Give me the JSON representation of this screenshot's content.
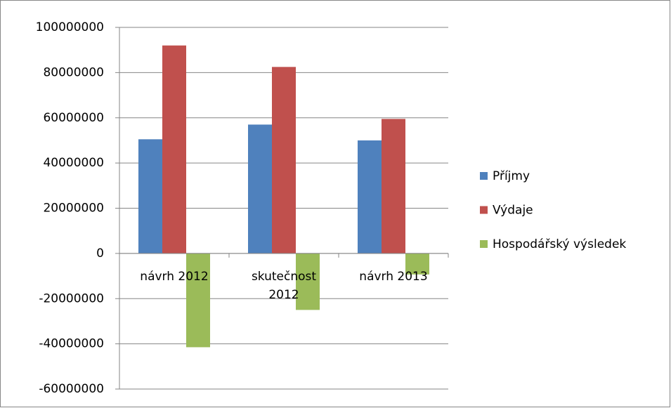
{
  "chart_data": {
    "type": "bar",
    "categories": [
      "návrh 2012",
      "skutečnost 2012",
      "návrh 2013"
    ],
    "series": [
      {
        "name": "Příjmy",
        "color": "#4f81bd",
        "values": [
          50500000,
          57000000,
          50000000
        ]
      },
      {
        "name": "Výdaje",
        "color": "#c0504d",
        "values": [
          92000000,
          82500000,
          59500000
        ]
      },
      {
        "name": "Hospodářský výsledek",
        "color": "#9bbb59",
        "values": [
          -41500000,
          -25000000,
          -9300000
        ]
      }
    ],
    "ylim": [
      -60000000,
      100000000
    ],
    "yticks": [
      -60000000,
      -40000000,
      -20000000,
      0,
      20000000,
      40000000,
      60000000,
      80000000,
      100000000
    ],
    "grid": true,
    "legend": "right"
  }
}
